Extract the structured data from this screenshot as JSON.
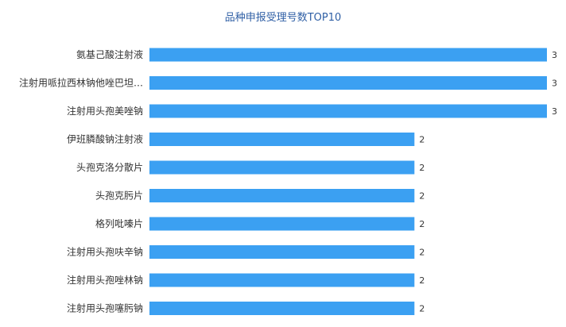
{
  "chart_data": {
    "type": "bar",
    "orientation": "horizontal",
    "title": "品种申报受理号数TOP10",
    "categories": [
      "氨基己酸注射液",
      "注射用哌拉西林钠他唑巴坦…",
      "注射用头孢美唑钠",
      "伊班膦酸钠注射液",
      "头孢克洛分散片",
      "头孢克肟片",
      "格列吡嗪片",
      "注射用头孢呋辛钠",
      "注射用头孢唑林钠",
      "注射用头孢噻肟钠"
    ],
    "values": [
      3,
      3,
      3,
      2,
      2,
      2,
      2,
      2,
      2,
      2
    ],
    "xlim": [
      0,
      3
    ],
    "grid": false,
    "legend": "none",
    "bar_color": "#3ba0f2"
  }
}
